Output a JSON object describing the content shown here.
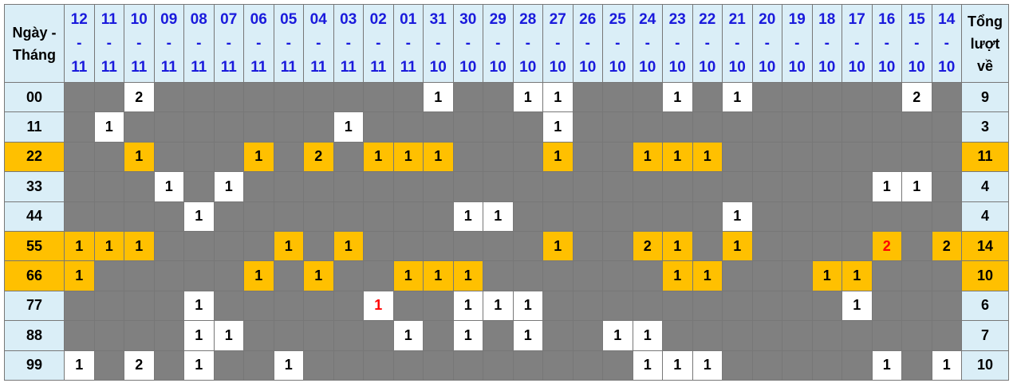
{
  "header": {
    "row_label": "Ngày - Tháng",
    "total_label": "Tổng lượt về"
  },
  "colors": {
    "header_bg": "#daeef7",
    "date_text": "#1a1adc",
    "highlight": "#ffc000",
    "empty_cell": "#808080",
    "value_cell": "#ffffff",
    "red_value": "#ff0000"
  },
  "dates": [
    {
      "day": "12",
      "month": "11"
    },
    {
      "day": "11",
      "month": "11"
    },
    {
      "day": "10",
      "month": "11"
    },
    {
      "day": "09",
      "month": "11"
    },
    {
      "day": "08",
      "month": "11"
    },
    {
      "day": "07",
      "month": "11"
    },
    {
      "day": "06",
      "month": "11"
    },
    {
      "day": "05",
      "month": "11"
    },
    {
      "day": "04",
      "month": "11"
    },
    {
      "day": "03",
      "month": "11"
    },
    {
      "day": "02",
      "month": "11"
    },
    {
      "day": "01",
      "month": "11"
    },
    {
      "day": "31",
      "month": "10"
    },
    {
      "day": "30",
      "month": "10"
    },
    {
      "day": "29",
      "month": "10"
    },
    {
      "day": "28",
      "month": "10"
    },
    {
      "day": "27",
      "month": "10"
    },
    {
      "day": "26",
      "month": "10"
    },
    {
      "day": "25",
      "month": "10"
    },
    {
      "day": "24",
      "month": "10"
    },
    {
      "day": "23",
      "month": "10"
    },
    {
      "day": "22",
      "month": "10"
    },
    {
      "day": "21",
      "month": "10"
    },
    {
      "day": "20",
      "month": "10"
    },
    {
      "day": "19",
      "month": "10"
    },
    {
      "day": "18",
      "month": "10"
    },
    {
      "day": "17",
      "month": "10"
    },
    {
      "day": "16",
      "month": "10"
    },
    {
      "day": "15",
      "month": "10"
    },
    {
      "day": "14",
      "month": "10"
    }
  ],
  "rows": [
    {
      "label": "00",
      "total": "9",
      "highlight": false,
      "red": [],
      "cells": [
        "",
        "",
        "2",
        "",
        "",
        "",
        "",
        "",
        "",
        "",
        "",
        "",
        "1",
        "",
        "",
        "1",
        "1",
        "",
        "",
        "",
        "1",
        "",
        "1",
        "",
        "",
        "",
        "",
        "",
        "2",
        ""
      ]
    },
    {
      "label": "11",
      "total": "3",
      "highlight": false,
      "red": [],
      "cells": [
        "",
        "1",
        "",
        "",
        "",
        "",
        "",
        "",
        "",
        "1",
        "",
        "",
        "",
        "",
        "",
        "",
        "1",
        "",
        "",
        "",
        "",
        "",
        "",
        "",
        "",
        "",
        "",
        "",
        "",
        ""
      ]
    },
    {
      "label": "22",
      "total": "11",
      "highlight": true,
      "red": [],
      "cells": [
        "",
        "",
        "1",
        "",
        "",
        "",
        "1",
        "",
        "2",
        "",
        "1",
        "1",
        "1",
        "",
        "",
        "",
        "1",
        "",
        "",
        "1",
        "1",
        "1",
        "",
        "",
        "",
        "",
        "",
        "",
        "",
        ""
      ]
    },
    {
      "label": "33",
      "total": "4",
      "highlight": false,
      "red": [],
      "cells": [
        "",
        "",
        "",
        "1",
        "",
        "1",
        "",
        "",
        "",
        "",
        "",
        "",
        "",
        "",
        "",
        "",
        "",
        "",
        "",
        "",
        "",
        "",
        "",
        "",
        "",
        "",
        "",
        "1",
        "1",
        ""
      ]
    },
    {
      "label": "44",
      "total": "4",
      "highlight": false,
      "red": [],
      "cells": [
        "",
        "",
        "",
        "",
        "1",
        "",
        "",
        "",
        "",
        "",
        "",
        "",
        "",
        "1",
        "1",
        "",
        "",
        "",
        "",
        "",
        "",
        "",
        "1",
        "",
        "",
        "",
        "",
        "",
        "",
        ""
      ]
    },
    {
      "label": "55",
      "total": "14",
      "highlight": true,
      "red": [
        27
      ],
      "cells": [
        "1",
        "1",
        "1",
        "",
        "",
        "",
        "",
        "1",
        "",
        "1",
        "",
        "",
        "",
        "",
        "",
        "",
        "1",
        "",
        "",
        "2",
        "1",
        "",
        "1",
        "",
        "",
        "",
        "",
        "2",
        "",
        "2"
      ]
    },
    {
      "label": "66",
      "total": "10",
      "highlight": true,
      "red": [],
      "cells": [
        "1",
        "",
        "",
        "",
        "",
        "",
        "1",
        "",
        "1",
        "",
        "",
        "1",
        "1",
        "1",
        "",
        "",
        "",
        "",
        "",
        "",
        "1",
        "1",
        "",
        "",
        "",
        "1",
        "1",
        "",
        "",
        ""
      ]
    },
    {
      "label": "77",
      "total": "6",
      "highlight": false,
      "red": [
        10
      ],
      "cells": [
        "",
        "",
        "",
        "",
        "1",
        "",
        "",
        "",
        "",
        "",
        "1",
        "",
        "",
        "1",
        "1",
        "1",
        "",
        "",
        "",
        "",
        "",
        "",
        "",
        "",
        "",
        "",
        "1",
        "",
        "",
        ""
      ]
    },
    {
      "label": "88",
      "total": "7",
      "highlight": false,
      "red": [],
      "cells": [
        "",
        "",
        "",
        "",
        "1",
        "1",
        "",
        "",
        "",
        "",
        "",
        "1",
        "",
        "1",
        "",
        "1",
        "",
        "",
        "1",
        "1",
        "",
        "",
        "",
        "",
        "",
        "",
        "",
        "",
        "",
        ""
      ]
    },
    {
      "label": "99",
      "total": "10",
      "highlight": false,
      "red": [],
      "cells": [
        "1",
        "",
        "2",
        "",
        "1",
        "",
        "",
        "1",
        "",
        "",
        "",
        "",
        "",
        "",
        "",
        "",
        "",
        "",
        "",
        "1",
        "1",
        "1",
        "",
        "",
        "",
        "",
        "",
        "1",
        "",
        "1"
      ]
    }
  ]
}
